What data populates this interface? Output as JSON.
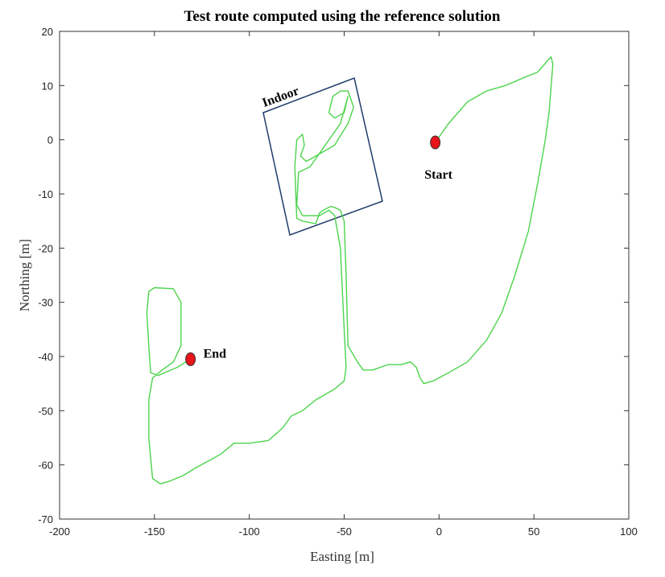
{
  "chart_data": {
    "type": "line",
    "title": "Test route computed using the reference solution",
    "x_label": "Easting [m]",
    "y_label": "Northing [m]",
    "color": "#4cd44c",
    "xlim": [
      -200,
      100
    ],
    "ylim": [
      -70,
      20
    ],
    "xticks": [
      -200,
      -150,
      -100,
      -50,
      0,
      50,
      100
    ],
    "yticks": [
      20,
      10,
      0,
      -10,
      -20,
      -30,
      -40,
      -50,
      -60,
      -70
    ],
    "grid": false,
    "x": [
      -2,
      5,
      15,
      25,
      35,
      45,
      52,
      57,
      59,
      60,
      58,
      56,
      52,
      47,
      40,
      33,
      25,
      15,
      5,
      -3,
      -8,
      -10,
      -12,
      -15,
      -20,
      -27,
      -35,
      -40,
      -43,
      -48,
      -49,
      -50,
      -52,
      -55,
      -57,
      -60,
      -63,
      -65,
      -72,
      -75,
      -76,
      -75,
      -72,
      -71,
      -73,
      -70,
      -55,
      -48,
      -45,
      -48,
      -52,
      -56,
      -58,
      -55,
      -50,
      -48,
      -52,
      -68,
      -74,
      -75,
      -72,
      -63,
      -58,
      -55,
      -52,
      -50,
      -49,
      -50,
      -55,
      -65,
      -72,
      -78,
      -82,
      -85,
      -90,
      -100,
      -108,
      -115,
      -120,
      -128,
      -135,
      -142,
      -147,
      -151,
      -153,
      -153,
      -151,
      -146,
      -140,
      -136,
      -136,
      -140,
      -150,
      -153,
      -154,
      -153,
      -152,
      -148,
      -138,
      -131
    ],
    "values": [
      -0.5,
      3,
      7,
      9,
      10,
      11.5,
      12.5,
      14.5,
      15.3,
      14,
      5,
      0,
      -8,
      -17,
      -25,
      -32,
      -37,
      -41,
      -43,
      -44.5,
      -45,
      -44,
      -42,
      -41,
      -41.5,
      -41.5,
      -42.5,
      -42.5,
      -41,
      -38,
      -25,
      -15,
      -13,
      -12.5,
      -12.3,
      -12.8,
      -13.5,
      -15.5,
      -15,
      -14.5,
      -5,
      0,
      1,
      -1,
      -3,
      -4,
      -1,
      3,
      6,
      9,
      9,
      8,
      5,
      4,
      5,
      8,
      3,
      -5,
      -6,
      -12,
      -14,
      -14,
      -13,
      -14,
      -20,
      -35,
      -42,
      -44.5,
      -46,
      -48,
      -50,
      -51,
      -53,
      -54,
      -55.5,
      -56,
      -56,
      -58,
      -59,
      -60.5,
      -62,
      -63,
      -63.5,
      -62.5,
      -55,
      -48,
      -44,
      -42.5,
      -41,
      -38,
      -30,
      -27.5,
      -27.3,
      -28,
      -32,
      -38,
      -43,
      -43.5,
      -42,
      -40.5
    ],
    "markers": [
      {
        "label": "Start",
        "x": -2,
        "y": -0.5,
        "color": "#e8141b"
      },
      {
        "label": "End",
        "x": -131,
        "y": -40.5,
        "color": "#e8141b"
      }
    ],
    "annotation": "Indoor"
  }
}
